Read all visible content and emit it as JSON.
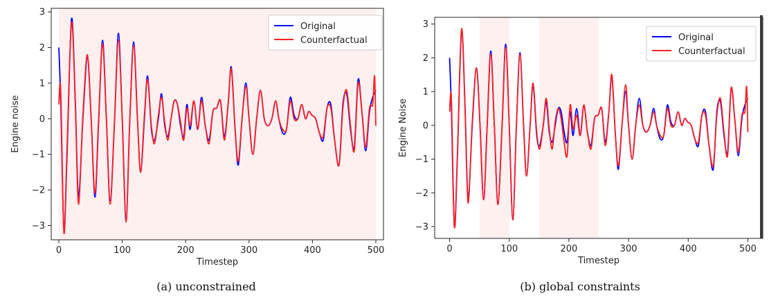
{
  "legend": {
    "original": "Original",
    "counterfactual": "Counterfactual"
  },
  "colors": {
    "original": "#0000ff",
    "counterfactual": "#ff2020",
    "shade": "#fff0f0"
  },
  "chart_data": [
    {
      "type": "line",
      "caption": "(a) unconstrained",
      "xlabel": "Timestep",
      "ylabel": "Engine noise",
      "xlim": [
        -12,
        512
      ],
      "ylim": [
        -3.4,
        3.1
      ],
      "xticks": [
        0,
        100,
        200,
        300,
        400,
        500
      ],
      "yticks": [
        -3,
        -2,
        -1,
        0,
        1,
        2,
        3
      ],
      "shaded_regions": [
        [
          0,
          500
        ]
      ],
      "series": [
        {
          "name": "Original",
          "x": [
            0,
            3,
            8,
            13,
            20,
            26,
            31,
            38,
            45,
            51,
            57,
            63,
            69,
            75,
            81,
            88,
            94,
            100,
            106,
            112,
            118,
            124,
            129,
            135,
            140,
            146,
            151,
            157,
            162,
            167,
            172,
            177,
            182,
            187,
            192,
            197,
            202,
            207,
            213,
            219,
            225,
            231,
            237,
            243,
            249,
            255,
            261,
            267,
            272,
            278,
            283,
            289,
            295,
            300,
            306,
            312,
            318,
            324,
            330,
            336,
            342,
            347,
            353,
            359,
            365,
            371,
            377,
            383,
            389,
            394,
            399,
            405,
            411,
            417,
            423,
            429,
            435,
            442,
            448,
            454,
            460,
            466,
            472,
            478,
            484,
            490,
            495,
            500
          ],
          "y": [
            2.0,
            0.5,
            -3.1,
            -1.0,
            2.8,
            0.5,
            -2.2,
            0.0,
            1.7,
            0.0,
            -2.2,
            0.0,
            2.2,
            0.0,
            -2.3,
            0.0,
            2.4,
            0.0,
            -2.8,
            0.0,
            2.15,
            0.0,
            -1.5,
            0.0,
            1.2,
            -0.3,
            -0.6,
            0.0,
            0.7,
            -0.2,
            -0.5,
            0.0,
            0.5,
            0.4,
            -0.2,
            -0.5,
            0.4,
            -0.3,
            0.5,
            -0.3,
            0.6,
            -0.2,
            -0.6,
            0.2,
            0.3,
            0.5,
            -0.5,
            0.4,
            1.45,
            -0.3,
            -1.3,
            0.0,
            1.0,
            0.0,
            -1.0,
            0.0,
            0.8,
            0.0,
            -0.2,
            0.0,
            0.5,
            0.0,
            -0.4,
            -0.3,
            0.6,
            0.1,
            0.0,
            0.4,
            0.0,
            0.2,
            0.1,
            0.0,
            -0.4,
            -0.6,
            0.3,
            0.4,
            -0.6,
            -1.3,
            0.4,
            0.7,
            -0.3,
            -0.8,
            1.1,
            0.2,
            -0.9,
            0.2,
            0.6,
            0.8
          ]
        },
        {
          "name": "Counterfactual",
          "x": [
            0,
            3,
            8,
            13,
            20,
            26,
            31,
            38,
            45,
            51,
            57,
            63,
            69,
            75,
            81,
            88,
            94,
            100,
            106,
            112,
            118,
            124,
            129,
            135,
            140,
            146,
            151,
            157,
            162,
            167,
            172,
            177,
            182,
            187,
            192,
            197,
            202,
            207,
            213,
            219,
            225,
            231,
            237,
            243,
            249,
            255,
            261,
            267,
            272,
            278,
            283,
            289,
            295,
            300,
            306,
            312,
            318,
            324,
            330,
            336,
            342,
            347,
            353,
            359,
            365,
            371,
            377,
            383,
            389,
            394,
            399,
            405,
            411,
            417,
            423,
            429,
            435,
            442,
            448,
            454,
            460,
            466,
            472,
            478,
            484,
            490,
            495,
            498,
            500
          ],
          "y": [
            0.4,
            0.8,
            -3.2,
            -0.8,
            2.7,
            0.4,
            -2.4,
            0.1,
            1.8,
            0.0,
            -2.1,
            0.1,
            2.1,
            0.0,
            -2.4,
            0.0,
            2.2,
            0.0,
            -2.9,
            0.0,
            2.05,
            0.0,
            -1.5,
            0.1,
            1.1,
            -0.2,
            -0.7,
            0.1,
            0.6,
            -0.1,
            -0.6,
            0.0,
            0.5,
            0.4,
            -0.1,
            -0.6,
            0.3,
            -0.2,
            0.5,
            -0.3,
            0.5,
            -0.2,
            -0.7,
            0.2,
            0.3,
            0.5,
            -0.6,
            0.4,
            1.4,
            -0.3,
            -1.2,
            0.0,
            0.9,
            0.0,
            -1.0,
            0.0,
            0.8,
            0.0,
            -0.2,
            0.0,
            0.5,
            0.0,
            -0.3,
            -0.3,
            0.5,
            0.0,
            0.0,
            0.4,
            0.0,
            0.2,
            0.1,
            0.0,
            -0.4,
            -0.5,
            0.3,
            0.3,
            -0.6,
            -1.3,
            0.3,
            0.8,
            -0.2,
            -0.9,
            1.0,
            0.2,
            -0.8,
            0.3,
            0.4,
            1.2,
            -0.2
          ]
        }
      ]
    },
    {
      "type": "line",
      "caption": "(b) global constraints",
      "xlabel": "Timestep",
      "ylabel": "Engine Noise",
      "xlim": [
        -25,
        525
      ],
      "ylim": [
        -3.35,
        3.2
      ],
      "xticks": [
        0,
        100,
        200,
        300,
        400,
        500
      ],
      "yticks": [
        -3,
        -2,
        -1,
        0,
        1,
        2,
        3
      ],
      "shaded_regions": [
        [
          50,
          100
        ],
        [
          150,
          250
        ]
      ],
      "series": [
        {
          "name": "Original",
          "x": [
            0,
            3,
            8,
            13,
            20,
            26,
            31,
            38,
            45,
            51,
            57,
            63,
            69,
            75,
            81,
            88,
            94,
            100,
            106,
            112,
            118,
            124,
            129,
            135,
            140,
            146,
            151,
            157,
            162,
            167,
            172,
            177,
            182,
            187,
            192,
            197,
            202,
            207,
            213,
            219,
            225,
            231,
            237,
            243,
            249,
            255,
            261,
            267,
            272,
            278,
            283,
            289,
            295,
            300,
            306,
            312,
            318,
            324,
            330,
            336,
            342,
            347,
            353,
            359,
            365,
            371,
            377,
            383,
            389,
            394,
            399,
            405,
            411,
            417,
            423,
            429,
            435,
            442,
            448,
            454,
            460,
            466,
            472,
            478,
            484,
            490,
            495,
            500
          ],
          "y": [
            2.0,
            0.5,
            -3.0,
            -1.0,
            2.8,
            0.5,
            -2.2,
            0.0,
            1.7,
            0.0,
            -2.2,
            0.0,
            2.2,
            0.0,
            -2.3,
            0.0,
            2.4,
            0.0,
            -2.8,
            0.0,
            2.15,
            0.0,
            -1.5,
            0.0,
            1.2,
            -0.3,
            -0.6,
            0.0,
            0.7,
            -0.2,
            -0.5,
            0.0,
            0.5,
            0.4,
            -0.2,
            -0.5,
            0.4,
            -0.3,
            0.5,
            -0.3,
            0.6,
            -0.2,
            -0.6,
            0.2,
            0.3,
            0.5,
            -0.5,
            0.4,
            1.45,
            -0.3,
            -1.3,
            0.0,
            1.0,
            0.0,
            -1.0,
            0.0,
            0.8,
            0.0,
            -0.2,
            0.0,
            0.5,
            0.0,
            -0.4,
            -0.3,
            0.6,
            0.1,
            0.0,
            0.4,
            0.0,
            0.2,
            0.1,
            0.0,
            -0.4,
            -0.6,
            0.3,
            0.4,
            -0.6,
            -1.3,
            0.4,
            0.7,
            -0.3,
            -0.8,
            1.1,
            0.2,
            -0.9,
            0.2,
            0.6,
            0.8
          ]
        },
        {
          "name": "Counterfactual",
          "x": [
            0,
            3,
            8,
            13,
            20,
            26,
            31,
            38,
            45,
            51,
            57,
            63,
            69,
            75,
            81,
            88,
            94,
            100,
            106,
            112,
            118,
            124,
            129,
            135,
            140,
            146,
            151,
            157,
            162,
            167,
            172,
            177,
            182,
            187,
            192,
            197,
            202,
            207,
            213,
            219,
            225,
            231,
            237,
            243,
            249,
            255,
            261,
            267,
            272,
            278,
            283,
            289,
            295,
            300,
            306,
            312,
            318,
            324,
            330,
            336,
            342,
            347,
            353,
            359,
            365,
            371,
            377,
            383,
            389,
            394,
            399,
            405,
            411,
            417,
            423,
            429,
            435,
            442,
            448,
            454,
            460,
            466,
            472,
            478,
            484,
            490,
            495,
            498,
            500
          ],
          "y": [
            0.4,
            0.8,
            -3.0,
            -0.9,
            2.85,
            0.4,
            -2.3,
            0.1,
            1.7,
            0.0,
            -2.2,
            0.0,
            2.1,
            0.0,
            -2.35,
            0.0,
            2.3,
            0.0,
            -2.8,
            0.0,
            2.1,
            0.0,
            -1.5,
            0.0,
            1.25,
            -0.2,
            -0.7,
            0.0,
            0.8,
            -0.1,
            -0.7,
            0.1,
            0.5,
            0.2,
            -0.5,
            -0.9,
            0.6,
            -0.1,
            0.3,
            -0.3,
            0.6,
            -0.2,
            -0.7,
            0.2,
            0.3,
            0.5,
            -0.6,
            0.4,
            1.5,
            -0.3,
            -1.2,
            0.0,
            1.2,
            0.0,
            -1.0,
            0.0,
            0.6,
            0.0,
            -0.2,
            0.0,
            0.4,
            0.0,
            -0.3,
            -0.3,
            0.5,
            0.0,
            0.0,
            0.4,
            0.0,
            0.2,
            0.1,
            0.0,
            -0.4,
            -0.5,
            0.3,
            0.3,
            -0.6,
            -1.2,
            0.3,
            0.8,
            -0.2,
            -0.9,
            1.1,
            0.2,
            -0.8,
            0.3,
            0.4,
            1.15,
            -0.2
          ]
        }
      ]
    }
  ]
}
